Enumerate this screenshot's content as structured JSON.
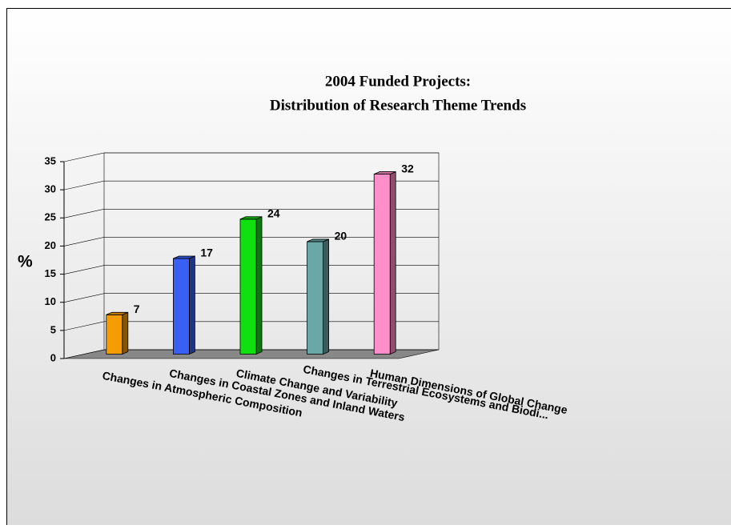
{
  "chart_data": {
    "type": "bar3d",
    "title": [
      "2004 Funded Projects:",
      "Distribution of Research Theme Trends"
    ],
    "ylabel": "%",
    "categories": [
      "Changes in Atmospheric Composition",
      "Changes in Coastal Zones and Inland Waters",
      "Climate Change and Variability",
      "Changes in Terrestrial Ecosystems and Biodi...",
      "Human Dimensions of Global Change"
    ],
    "values": [
      7,
      17,
      24,
      20,
      32
    ],
    "colors": [
      "#f59d00",
      "#3a5ff5",
      "#10e010",
      "#6aa8a8",
      "#ff8fc8"
    ],
    "ylim": [
      0,
      35
    ],
    "yticks": [
      0,
      5,
      10,
      15,
      20,
      25,
      30,
      35
    ],
    "grid": true
  }
}
